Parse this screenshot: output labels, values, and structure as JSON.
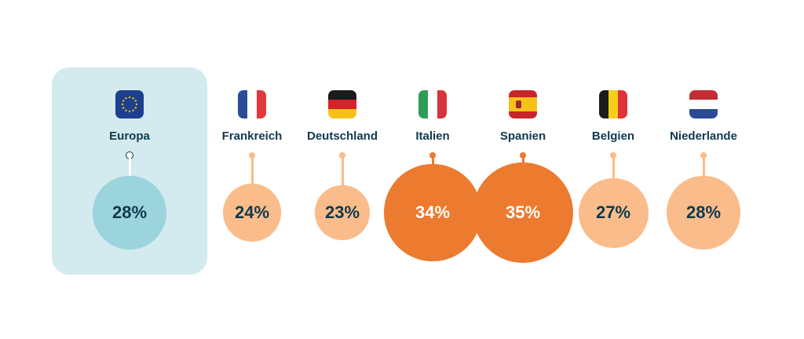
{
  "chart_data": {
    "type": "bubble",
    "unit": "%",
    "items": [
      {
        "country": "Europa",
        "value": 28,
        "label": "28%",
        "flag": "eu-flag-icon",
        "highlight": true
      },
      {
        "country": "Frankreich",
        "value": 24,
        "label": "24%",
        "flag": "france-flag-icon"
      },
      {
        "country": "Deutschland",
        "value": 23,
        "label": "23%",
        "flag": "germany-flag-icon"
      },
      {
        "country": "Italien",
        "value": 34,
        "label": "34%",
        "flag": "italy-flag-icon"
      },
      {
        "country": "Spanien",
        "value": 35,
        "label": "35%",
        "flag": "spain-flag-icon"
      },
      {
        "country": "Belgien",
        "value": 27,
        "label": "27%",
        "flag": "belgium-flag-icon"
      },
      {
        "country": "Niederlande",
        "value": 28,
        "label": "28%",
        "flag": "netherlands-flag-icon"
      }
    ]
  },
  "colors": {
    "highlight_bg": "#d3eaee",
    "highlight_bubble": "#9bd4dd",
    "highlight_stem": "#ffffff",
    "light_bubble": "#f9bc8a",
    "dark_bubble": "#ec7a2f",
    "dark_text": "#0f3a4c",
    "light_text": "#ffffff"
  }
}
